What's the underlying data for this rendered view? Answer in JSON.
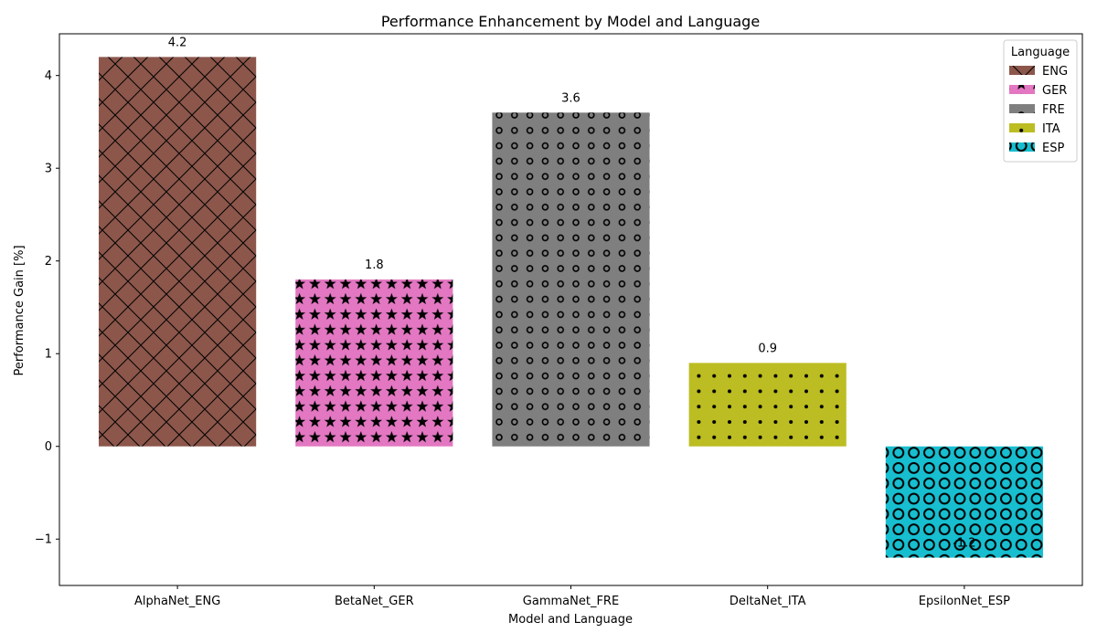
{
  "chart_data": {
    "type": "bar",
    "title": "Performance Enhancement by Model and Language",
    "xlabel": "Model and Language",
    "ylabel": "Performance Gain [%]",
    "categories": [
      "AlphaNet_ENG",
      "BetaNet_GER",
      "GammaNet_FRE",
      "DeltaNet_ITA",
      "EpsilonNet_ESP"
    ],
    "values": [
      4.2,
      1.8,
      3.6,
      0.9,
      -1.2
    ],
    "data_labels": [
      "4.2",
      "1.8",
      "3.6",
      "0.9",
      "-1.2"
    ],
    "ylim": [
      -1.5,
      4.45
    ],
    "yticks": [
      -1,
      0,
      1,
      2,
      3,
      4
    ],
    "ytick_labels": [
      "−1",
      "0",
      "1",
      "2",
      "3",
      "4"
    ],
    "colors": [
      "#8c564b",
      "#e377c2",
      "#7f7f7f",
      "#bcbd22",
      "#17becf"
    ],
    "hatches": [
      "crosshatch",
      "stars",
      "small-circles",
      "dots",
      "large-circles"
    ],
    "legend": {
      "title": "Language",
      "placement": "top-right",
      "entries": [
        "ENG",
        "GER",
        "FRE",
        "ITA",
        "ESP"
      ]
    },
    "grid": false
  }
}
